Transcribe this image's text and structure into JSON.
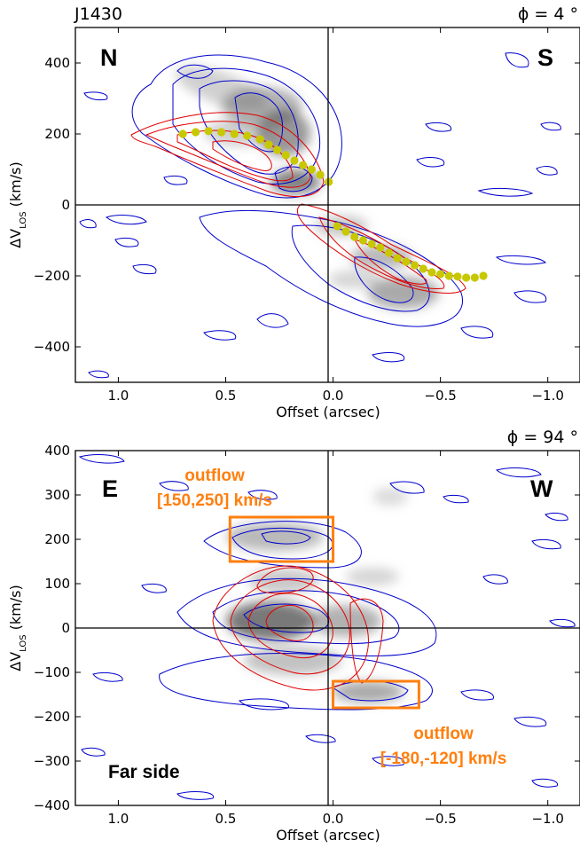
{
  "colors": {
    "lines": "#000000",
    "contour_outer": "#0000cc",
    "contour_inner": "#e00000",
    "track_points": "#c8c800",
    "outflow": "#ff7f0e",
    "shade": "#555555"
  },
  "chart_data": [
    {
      "type": "scatter",
      "title": "J1430",
      "angle_label": "ϕ = 4 °",
      "corner_left": "N",
      "corner_right": "S",
      "xlabel": "Offset (arcsec)",
      "ylabel": "ΔV",
      "ylabel_sub": "LOS",
      "ylabel_unit": " (km/s)",
      "xlim": [
        1.2,
        -1.15
      ],
      "ylim": [
        -500,
        500
      ],
      "xticks": [
        1.0,
        0.5,
        0.0,
        -0.5,
        -1.0
      ],
      "xtick_labels": [
        "1.0",
        "0.5",
        "0.0",
        "−0.5",
        "−1.0"
      ],
      "yticks": [
        400,
        200,
        0,
        -200,
        -400
      ],
      "ytick_labels": [
        "400",
        "200",
        "0",
        "−200",
        "−400"
      ],
      "track_points": {
        "x": [
          0.7,
          0.64,
          0.58,
          0.52,
          0.46,
          0.4,
          0.34,
          0.3,
          0.26,
          0.22,
          0.18,
          0.14,
          0.1,
          0.06,
          0.02,
          -0.02,
          -0.06,
          -0.1,
          -0.14,
          -0.18,
          -0.22,
          -0.26,
          -0.3,
          -0.34,
          -0.38,
          -0.42,
          -0.46,
          -0.5,
          -0.54,
          -0.58,
          -0.62,
          -0.66,
          -0.7
        ],
        "y": [
          200,
          205,
          208,
          205,
          200,
          195,
          185,
          170,
          155,
          140,
          125,
          112,
          100,
          85,
          65,
          -60,
          -75,
          -90,
          -100,
          -110,
          -120,
          -135,
          -150,
          -160,
          -170,
          -180,
          -190,
          -195,
          -200,
          -202,
          -205,
          -205,
          -200
        ]
      }
    },
    {
      "type": "scatter",
      "title": "",
      "angle_label": "ϕ = 94 °",
      "corner_left": "E",
      "corner_right": "W",
      "bottom_note": "Far side",
      "xlabel": "Offset (arcsec)",
      "ylabel": "ΔV",
      "ylabel_sub": "LOS",
      "ylabel_unit": " (km/s)",
      "xlim": [
        1.2,
        -1.15
      ],
      "ylim": [
        -400,
        400
      ],
      "xticks": [
        1.0,
        0.5,
        0.0,
        -0.5,
        -1.0
      ],
      "xtick_labels": [
        "1.0",
        "0.5",
        "0.0",
        "−0.5",
        "−1.0"
      ],
      "yticks": [
        400,
        300,
        200,
        100,
        0,
        -100,
        -200,
        -300,
        -400
      ],
      "ytick_labels": [
        "400",
        "300",
        "200",
        "100",
        "0",
        "−100",
        "−200",
        "−300",
        "−400"
      ],
      "outflow_boxes": [
        {
          "label_line1": "outflow",
          "label_line2": "[150,250] km/s",
          "x_range": [
            0.48,
            0.0
          ],
          "y_range": [
            150,
            250
          ]
        },
        {
          "label_line1": "outflow",
          "label_line2": "[-180,-120] km/s",
          "x_range": [
            0.0,
            -0.4
          ],
          "y_range": [
            -180,
            -120
          ]
        }
      ]
    }
  ]
}
